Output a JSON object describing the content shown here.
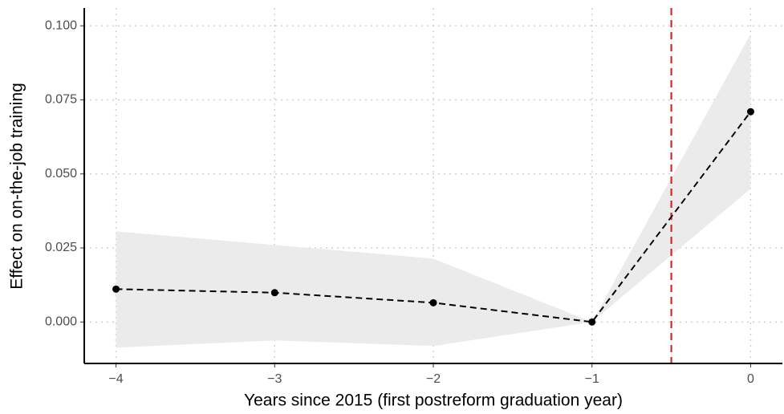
{
  "chart_data": {
    "type": "line",
    "x_label": "Years since 2015 (first postreform graduation year)",
    "y_label": "Effect on on-the-job training",
    "x": [
      -4,
      -3,
      -2,
      -1,
      0
    ],
    "series": [
      {
        "color": "#000000",
        "band_color": "#ebebeb",
        "values": [
          0.0111,
          0.0099,
          0.0065,
          0,
          0.071
        ],
        "ci_lower": [
          -0.0087,
          -0.0062,
          -0.0081,
          0,
          0.045
        ],
        "ci_upper": [
          0.0306,
          0.026,
          0.0214,
          0,
          0.0973
        ]
      }
    ],
    "vline": {
      "x": -0.5,
      "color": "#d62728"
    },
    "xlim": [
      -4.2,
      0.2
    ],
    "ylim": [
      -0.014,
      0.106
    ],
    "xticks": [
      {
        "value": -4,
        "label": "−4"
      },
      {
        "value": -3,
        "label": "−3"
      },
      {
        "value": -2,
        "label": "−2"
      },
      {
        "value": -1,
        "label": "−1"
      },
      0
    ],
    "yticks": [
      {
        "value": 0,
        "label": "0.000"
      },
      {
        "value": 0.025,
        "label": "0.025"
      },
      {
        "value": 0.05,
        "label": "0.050"
      },
      {
        "value": 0.075,
        "label": "0.075"
      },
      {
        "value": 0.1,
        "label": "0.100"
      }
    ],
    "grid": true
  }
}
